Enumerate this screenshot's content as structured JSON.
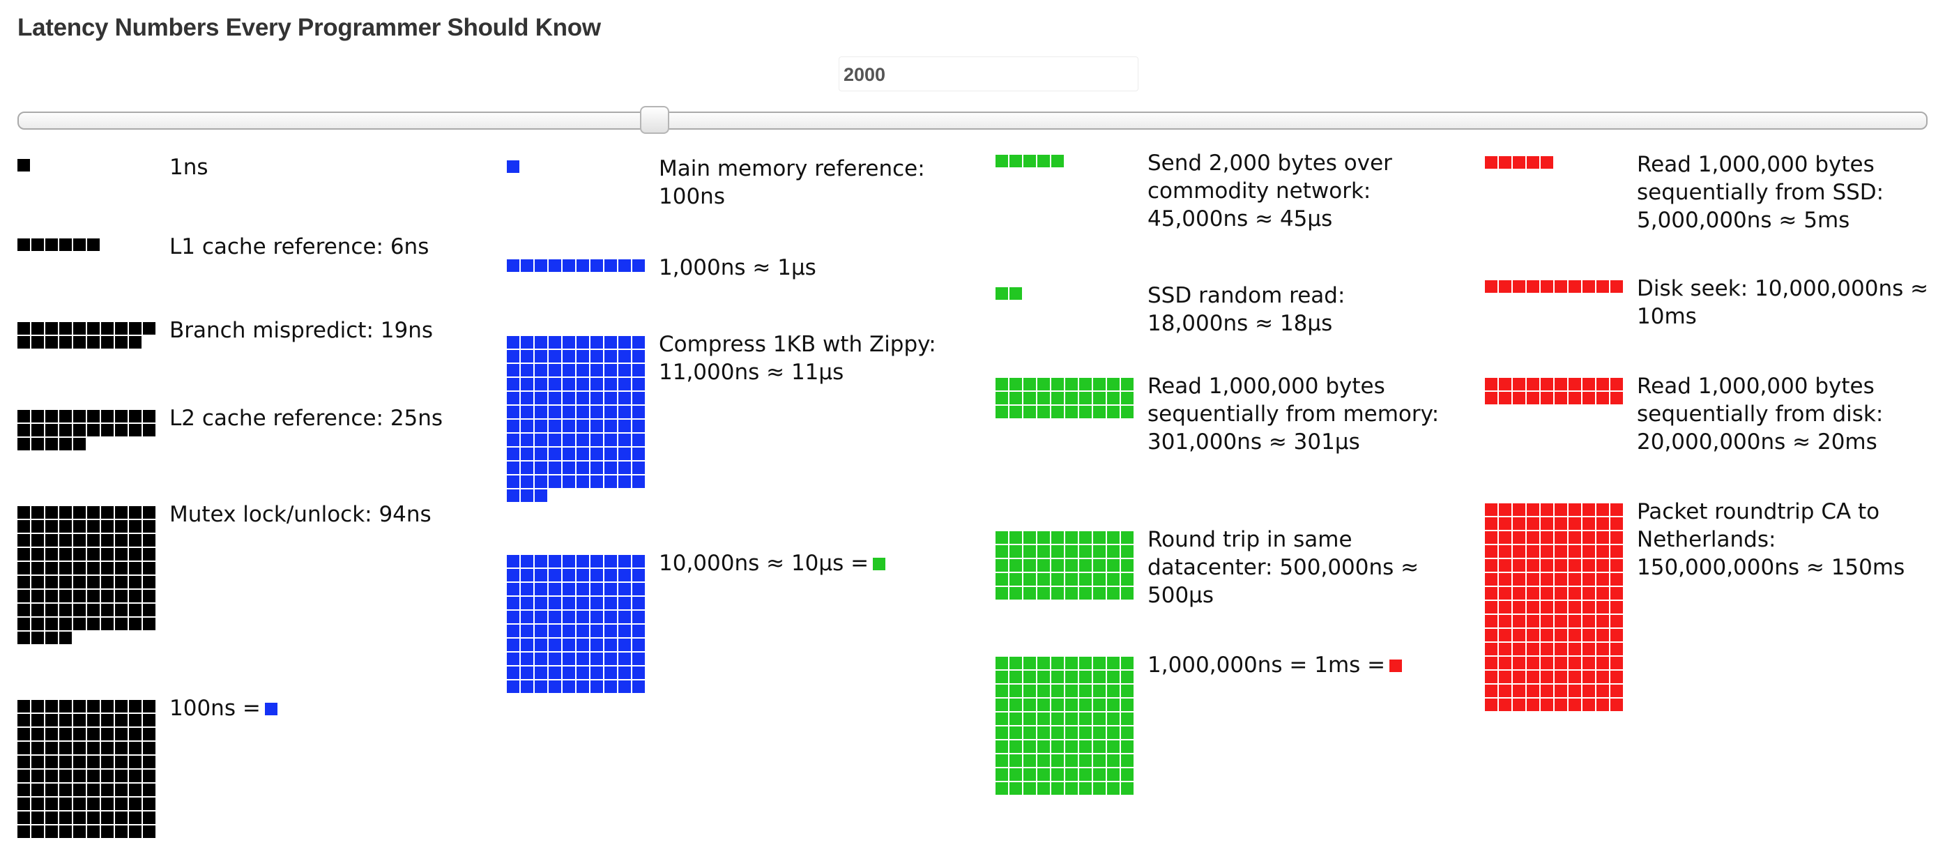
{
  "title": "Latency Numbers Every Programmer Should Know",
  "year": "2000",
  "slider": {
    "value": 2000
  },
  "colors": {
    "ns": "#000000",
    "hundred_ns": "#1432f5",
    "micro": "#22c722",
    "milli": "#f51a1a"
  },
  "columns": [
    {
      "items": [
        {
          "label": "1ns",
          "count": 1,
          "color": "#000000"
        },
        {
          "label": "L1 cache reference: 6ns",
          "count": 6,
          "color": "#000000"
        },
        {
          "label": "Branch mispredict: 19ns",
          "count": 19,
          "color": "#000000"
        },
        {
          "label": "L2 cache reference: 25ns",
          "count": 25,
          "color": "#000000"
        },
        {
          "label": "Mutex lock/unlock: 94ns",
          "count": 94,
          "color": "#000000"
        },
        {
          "label": "100ns =",
          "count": 100,
          "color": "#000000",
          "legend_color": "#1432f5"
        }
      ]
    },
    {
      "items": [
        {
          "label": "Main memory reference: 100ns",
          "count": 1,
          "color": "#1432f5"
        },
        {
          "label": "1,000ns ≈ 1µs",
          "count": 10,
          "color": "#1432f5"
        },
        {
          "label": "Compress 1KB wth Zippy: 11,000ns ≈ 11µs",
          "count": 113,
          "color": "#1432f5"
        },
        {
          "label": "10,000ns ≈ 10µs =",
          "count": 100,
          "color": "#1432f5",
          "legend_color": "#22c722"
        }
      ]
    },
    {
      "items": [
        {
          "label": "Send 2,000 bytes over commodity network: 45,000ns ≈ 45µs",
          "count": 5,
          "color": "#22c722"
        },
        {
          "label": "SSD random read: 18,000ns ≈ 18µs",
          "count": 2,
          "color": "#22c722"
        },
        {
          "label": "Read 1,000,000 bytes sequentially from memory: 301,000ns ≈ 301µs",
          "count": 30,
          "color": "#22c722"
        },
        {
          "label": "Round trip in same datacenter: 500,000ns ≈ 500µs",
          "count": 50,
          "color": "#22c722"
        },
        {
          "label": "1,000,000ns = 1ms =",
          "count": 100,
          "color": "#22c722",
          "legend_color": "#f51a1a"
        }
      ]
    },
    {
      "items": [
        {
          "label": "Read 1,000,000 bytes sequentially from SSD: 5,000,000ns ≈ 5ms",
          "count": 5,
          "color": "#f51a1a"
        },
        {
          "label": "Disk seek: 10,000,000ns ≈ 10ms",
          "count": 10,
          "color": "#f51a1a"
        },
        {
          "label": "Read 1,000,000 bytes sequentially from disk: 20,000,000ns ≈ 20ms",
          "count": 20,
          "color": "#f51a1a"
        },
        {
          "label": "Packet roundtrip CA to Netherlands: 150,000,000ns ≈ 150ms",
          "count": 150,
          "color": "#f51a1a"
        }
      ]
    }
  ]
}
